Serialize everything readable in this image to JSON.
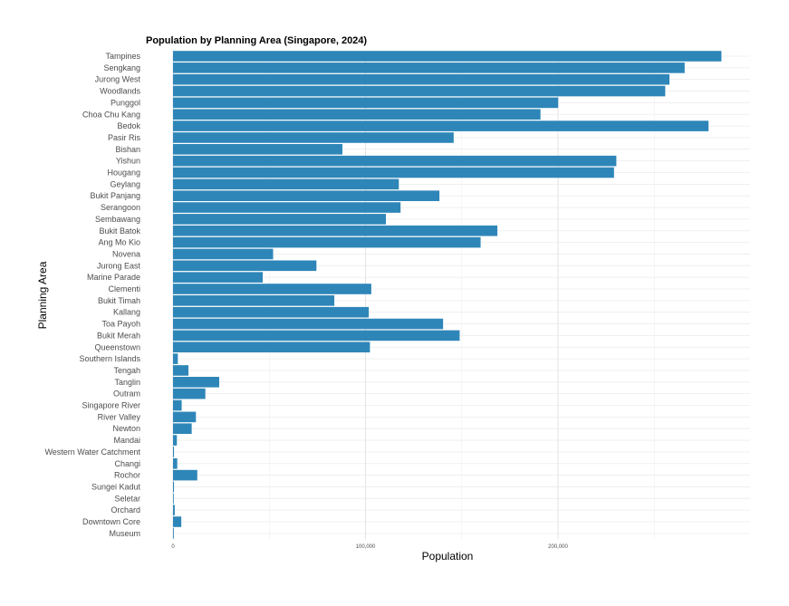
{
  "chart_data": {
    "type": "bar",
    "orientation": "horizontal",
    "title": "Population by Planning Area (Singapore, 2024)",
    "xlabel": "Population",
    "ylabel": "Planning Area",
    "xlim": [
      0,
      300000
    ],
    "x_ticks": [
      0,
      100000,
      200000
    ],
    "x_tick_labels": [
      "0",
      "100,000",
      "200,000"
    ],
    "bar_color": "#2e86b8",
    "grid": true,
    "legend": "none",
    "categories": [
      "Tampines",
      "Sengkang",
      "Jurong West",
      "Woodlands",
      "Punggol",
      "Choa Chu Kang",
      "Bedok",
      "Pasir Ris",
      "Bishan",
      "Yishun",
      "Hougang",
      "Geylang",
      "Bukit Panjang",
      "Serangoon",
      "Sembawang",
      "Bukit Batok",
      "Ang Mo Kio",
      "Novena",
      "Jurong East",
      "Marine Parade",
      "Clementi",
      "Bukit Timah",
      "Kallang",
      "Toa Payoh",
      "Bukit Merah",
      "Queenstown",
      "Southern Islands",
      "Tengah",
      "Tanglin",
      "Outram",
      "Singapore River",
      "River Valley",
      "Newton",
      "Mandai",
      "Western Water Catchment",
      "Changi",
      "Rochor",
      "Sungei Kadut",
      "Seletar",
      "Orchard",
      "Downtown Core",
      "Museum"
    ],
    "values": [
      284900,
      265800,
      257900,
      255700,
      200100,
      190900,
      278200,
      145800,
      88000,
      230300,
      229100,
      117300,
      138400,
      118200,
      110600,
      168500,
      159800,
      52000,
      74500,
      46600,
      103000,
      83800,
      101700,
      140300,
      148900,
      102300,
      2500,
      8000,
      24000,
      16800,
      4500,
      11900,
      9700,
      2000,
      500,
      2200,
      12600,
      500,
      300,
      900,
      4300,
      400
    ]
  }
}
